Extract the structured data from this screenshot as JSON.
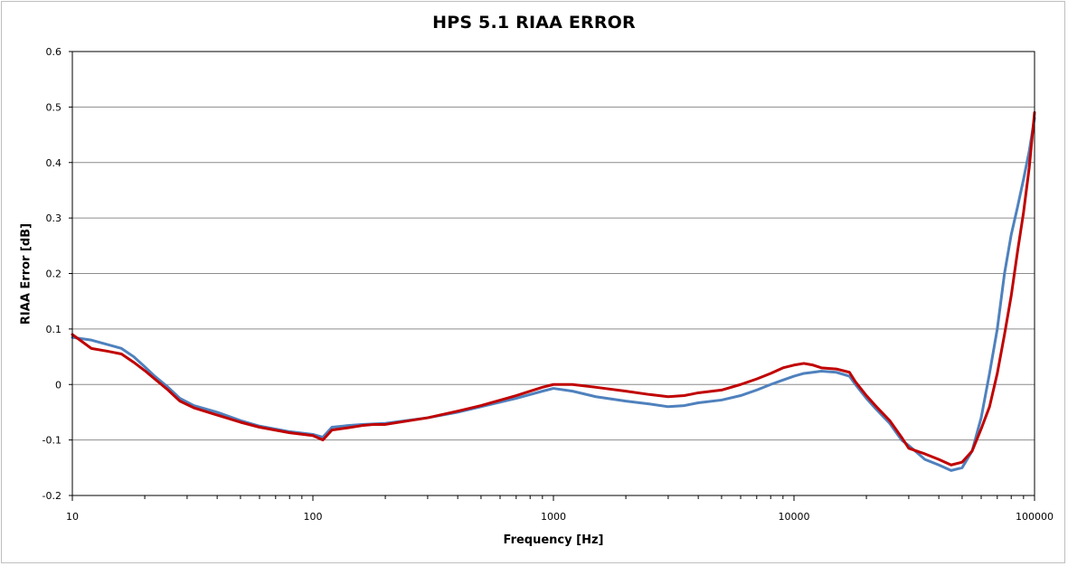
{
  "chart_data": {
    "type": "line",
    "title": "HPS 5.1 RIAA ERROR",
    "xlabel": "Frequency [Hz]",
    "ylabel": "RIAA Error [dB]",
    "xscale": "log",
    "xlim": [
      10,
      100000
    ],
    "ylim": [
      -0.2,
      0.6
    ],
    "xticks": [
      "10",
      "100",
      "1000",
      "10000",
      "100000"
    ],
    "yticks": [
      "0.6",
      "0.5",
      "0.4",
      "0.3",
      "0.2",
      "0.1",
      "0",
      "-0.1",
      "-0.2"
    ],
    "grid": "horizontal",
    "legend": "none",
    "series": [
      {
        "color": "#4f81bd",
        "points": [
          [
            10,
            0.085
          ],
          [
            12,
            0.08
          ],
          [
            14,
            0.072
          ],
          [
            16,
            0.065
          ],
          [
            18,
            0.05
          ],
          [
            20,
            0.032
          ],
          [
            22,
            0.015
          ],
          [
            25,
            -0.005
          ],
          [
            28,
            -0.025
          ],
          [
            32,
            -0.038
          ],
          [
            40,
            -0.05
          ],
          [
            50,
            -0.065
          ],
          [
            60,
            -0.075
          ],
          [
            80,
            -0.085
          ],
          [
            100,
            -0.09
          ],
          [
            110,
            -0.095
          ],
          [
            120,
            -0.077
          ],
          [
            140,
            -0.074
          ],
          [
            160,
            -0.072
          ],
          [
            200,
            -0.07
          ],
          [
            300,
            -0.06
          ],
          [
            400,
            -0.05
          ],
          [
            500,
            -0.04
          ],
          [
            700,
            -0.025
          ],
          [
            900,
            -0.012
          ],
          [
            1000,
            -0.007
          ],
          [
            1200,
            -0.012
          ],
          [
            1500,
            -0.022
          ],
          [
            2000,
            -0.03
          ],
          [
            2500,
            -0.035
          ],
          [
            3000,
            -0.04
          ],
          [
            3500,
            -0.038
          ],
          [
            4000,
            -0.033
          ],
          [
            5000,
            -0.028
          ],
          [
            6000,
            -0.02
          ],
          [
            7000,
            -0.01
          ],
          [
            8000,
            0
          ],
          [
            9000,
            0.008
          ],
          [
            10000,
            0.015
          ],
          [
            11000,
            0.02
          ],
          [
            12000,
            0.022
          ],
          [
            13000,
            0.024
          ],
          [
            15000,
            0.022
          ],
          [
            17000,
            0.015
          ],
          [
            18000,
            0
          ],
          [
            20000,
            -0.025
          ],
          [
            22000,
            -0.045
          ],
          [
            25000,
            -0.07
          ],
          [
            28000,
            -0.1
          ],
          [
            30000,
            -0.11
          ],
          [
            35000,
            -0.135
          ],
          [
            40000,
            -0.145
          ],
          [
            45000,
            -0.155
          ],
          [
            50000,
            -0.15
          ],
          [
            55000,
            -0.12
          ],
          [
            60000,
            -0.06
          ],
          [
            65000,
            0.02
          ],
          [
            70000,
            0.1
          ],
          [
            75000,
            0.2
          ],
          [
            80000,
            0.27
          ],
          [
            85000,
            0.32
          ],
          [
            90000,
            0.37
          ],
          [
            95000,
            0.42
          ],
          [
            100000,
            0.48
          ]
        ]
      },
      {
        "color": "#c00000",
        "points": [
          [
            10,
            0.09
          ],
          [
            12,
            0.065
          ],
          [
            14,
            0.06
          ],
          [
            16,
            0.055
          ],
          [
            18,
            0.04
          ],
          [
            20,
            0.025
          ],
          [
            22,
            0.01
          ],
          [
            25,
            -0.01
          ],
          [
            28,
            -0.03
          ],
          [
            32,
            -0.042
          ],
          [
            40,
            -0.055
          ],
          [
            50,
            -0.068
          ],
          [
            60,
            -0.077
          ],
          [
            80,
            -0.087
          ],
          [
            100,
            -0.092
          ],
          [
            110,
            -0.1
          ],
          [
            120,
            -0.082
          ],
          [
            140,
            -0.078
          ],
          [
            160,
            -0.074
          ],
          [
            180,
            -0.072
          ],
          [
            200,
            -0.072
          ],
          [
            300,
            -0.06
          ],
          [
            400,
            -0.048
          ],
          [
            500,
            -0.038
          ],
          [
            700,
            -0.02
          ],
          [
            900,
            -0.005
          ],
          [
            1000,
            0
          ],
          [
            1200,
            0
          ],
          [
            1500,
            -0.005
          ],
          [
            2000,
            -0.012
          ],
          [
            2500,
            -0.018
          ],
          [
            3000,
            -0.022
          ],
          [
            3500,
            -0.02
          ],
          [
            4000,
            -0.015
          ],
          [
            5000,
            -0.01
          ],
          [
            6000,
            0
          ],
          [
            7000,
            0.01
          ],
          [
            8000,
            0.02
          ],
          [
            9000,
            0.03
          ],
          [
            10000,
            0.035
          ],
          [
            11000,
            0.038
          ],
          [
            12000,
            0.035
          ],
          [
            13000,
            0.03
          ],
          [
            15000,
            0.028
          ],
          [
            17000,
            0.022
          ],
          [
            18000,
            0.005
          ],
          [
            20000,
            -0.02
          ],
          [
            22000,
            -0.04
          ],
          [
            25000,
            -0.065
          ],
          [
            28000,
            -0.095
          ],
          [
            30000,
            -0.115
          ],
          [
            35000,
            -0.125
          ],
          [
            40000,
            -0.135
          ],
          [
            45000,
            -0.145
          ],
          [
            50000,
            -0.14
          ],
          [
            55000,
            -0.12
          ],
          [
            60000,
            -0.08
          ],
          [
            65000,
            -0.04
          ],
          [
            70000,
            0.02
          ],
          [
            75000,
            0.09
          ],
          [
            80000,
            0.16
          ],
          [
            85000,
            0.24
          ],
          [
            90000,
            0.31
          ],
          [
            95000,
            0.39
          ],
          [
            100000,
            0.49
          ]
        ]
      }
    ]
  }
}
